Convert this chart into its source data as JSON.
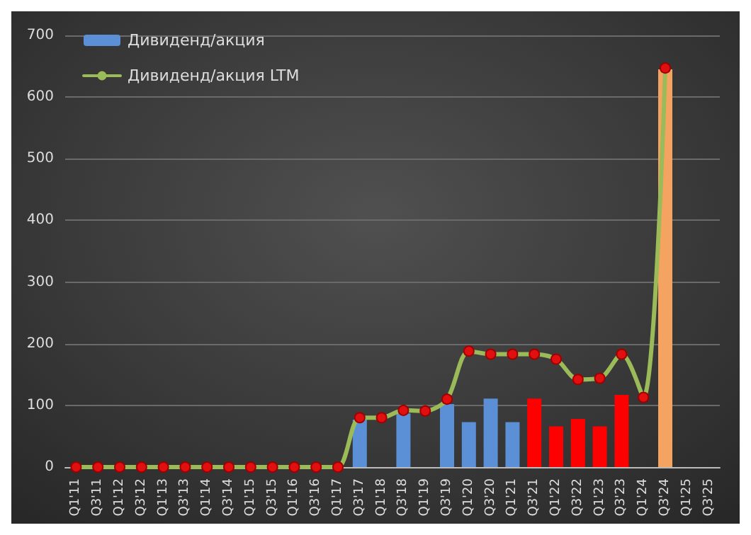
{
  "chart_data": {
    "type": "bar",
    "categories": [
      "Q1'11",
      "Q3'11",
      "Q1'12",
      "Q3'12",
      "Q1'13",
      "Q3'13",
      "Q1'14",
      "Q3'14",
      "Q1'15",
      "Q3'15",
      "Q1'16",
      "Q3'16",
      "Q1'17",
      "Q3'17",
      "Q1'18",
      "Q3'18",
      "Q1'19",
      "Q3'19",
      "Q1'20",
      "Q3'20",
      "Q1'21",
      "Q3'21",
      "Q1'22",
      "Q3'22",
      "Q1'23",
      "Q3'23",
      "Q1'24",
      "Q3'24",
      "Q1'25",
      "Q3'25"
    ],
    "series": [
      {
        "name": "Дивиденд/акция",
        "color": "#5b8fd6",
        "colors": [
          "#5b8fd6",
          "#5b8fd6",
          "#5b8fd6",
          "#5b8fd6",
          "#5b8fd6",
          "#5b8fd6",
          "#5b8fd6",
          "#5b8fd6",
          "#5b8fd6",
          "#5b8fd6",
          "#5b8fd6",
          "#5b8fd6",
          "#5b8fd6",
          "#5b8fd6",
          "#5b8fd6",
          "#5b8fd6",
          "#5b8fd6",
          "#5b8fd6",
          "#5b8fd6",
          "#5b8fd6",
          "#5b8fd6",
          "#ff0000",
          "#ff0000",
          "#ff0000",
          "#ff0000",
          "#ff0000",
          "#ff0000",
          "#f4a460",
          "#f4a460",
          "#f4a460"
        ],
        "values": [
          null,
          null,
          null,
          null,
          null,
          null,
          null,
          null,
          null,
          null,
          null,
          null,
          null,
          77,
          null,
          87,
          null,
          102,
          73,
          111,
          73,
          111,
          66,
          78,
          66,
          117,
          null,
          645,
          null,
          null
        ]
      },
      {
        "name": "Дивиденд/акция LTM",
        "type": "line",
        "color": "#9bbb59",
        "values": [
          0,
          0,
          0,
          0,
          0,
          0,
          0,
          0,
          0,
          0,
          0,
          0,
          0,
          80,
          80,
          92,
          91,
          110,
          188,
          183,
          183,
          183,
          175,
          142,
          144,
          183,
          113,
          647,
          null,
          null
        ]
      }
    ],
    "ylim": [
      0,
      700
    ],
    "yticks": [
      0,
      100,
      200,
      300,
      400,
      500,
      600,
      700
    ],
    "grid": "y",
    "legend": "top left",
    "marker": "circle",
    "line_style": "solid"
  }
}
